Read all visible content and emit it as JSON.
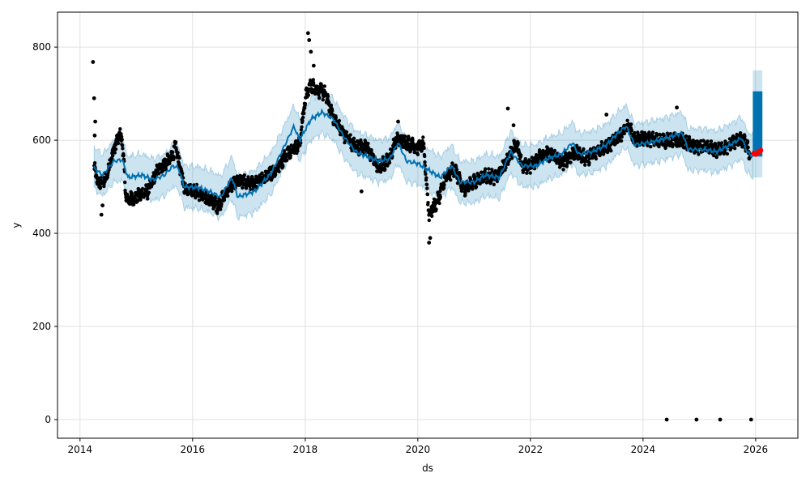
{
  "chart_data": {
    "type": "scatter",
    "xlabel": "ds",
    "ylabel": "y",
    "xlim": [
      2013.6,
      2026.75
    ],
    "ylim": [
      -40,
      875
    ],
    "grid": true,
    "x_ticks": [
      2014,
      2016,
      2018,
      2020,
      2022,
      2024,
      2026
    ],
    "x_tick_labels": [
      "2014",
      "2016",
      "2018",
      "2020",
      "2022",
      "2024",
      "2026"
    ],
    "y_ticks": [
      0,
      200,
      400,
      600,
      800
    ],
    "y_tick_labels": [
      "0",
      "200",
      "400",
      "600",
      "800"
    ],
    "colors": {
      "observed": "#000000",
      "forecast": "#0072B2",
      "interval": "#0072B2",
      "highlight": "#ff0000"
    },
    "observed_keypoints": [
      [
        2014.25,
        540
      ],
      [
        2014.33,
        505
      ],
      [
        2014.45,
        515
      ],
      [
        2014.6,
        580
      ],
      [
        2014.7,
        612
      ],
      [
        2014.75,
        600
      ],
      [
        2014.82,
        470
      ],
      [
        2015.0,
        478
      ],
      [
        2015.2,
        490
      ],
      [
        2015.4,
        540
      ],
      [
        2015.6,
        558
      ],
      [
        2015.7,
        585
      ],
      [
        2015.85,
        500
      ],
      [
        2016.0,
        495
      ],
      [
        2016.2,
        478
      ],
      [
        2016.35,
        470
      ],
      [
        2016.45,
        458
      ],
      [
        2016.6,
        490
      ],
      [
        2016.8,
        515
      ],
      [
        2017.0,
        505
      ],
      [
        2017.3,
        520
      ],
      [
        2017.5,
        540
      ],
      [
        2017.7,
        575
      ],
      [
        2017.9,
        590
      ],
      [
        2018.0,
        690
      ],
      [
        2018.1,
        720
      ],
      [
        2018.2,
        710
      ],
      [
        2018.35,
        700
      ],
      [
        2018.5,
        650
      ],
      [
        2018.7,
        610
      ],
      [
        2018.9,
        585
      ],
      [
        2019.1,
        585
      ],
      [
        2019.3,
        540
      ],
      [
        2019.5,
        560
      ],
      [
        2019.6,
        600
      ],
      [
        2019.7,
        600
      ],
      [
        2019.9,
        590
      ],
      [
        2020.0,
        585
      ],
      [
        2020.1,
        590
      ],
      [
        2020.2,
        440
      ],
      [
        2020.35,
        470
      ],
      [
        2020.5,
        520
      ],
      [
        2020.65,
        540
      ],
      [
        2020.8,
        495
      ],
      [
        2021.0,
        510
      ],
      [
        2021.2,
        525
      ],
      [
        2021.4,
        520
      ],
      [
        2021.6,
        560
      ],
      [
        2021.75,
        595
      ],
      [
        2021.85,
        545
      ],
      [
        2022.0,
        545
      ],
      [
        2022.2,
        570
      ],
      [
        2022.4,
        570
      ],
      [
        2022.55,
        550
      ],
      [
        2022.8,
        575
      ],
      [
        2023.0,
        560
      ],
      [
        2023.2,
        580
      ],
      [
        2023.4,
        590
      ],
      [
        2023.6,
        612
      ],
      [
        2023.75,
        630
      ],
      [
        2023.85,
        600
      ],
      [
        2024.0,
        605
      ],
      [
        2024.2,
        600
      ],
      [
        2024.4,
        598
      ],
      [
        2024.55,
        600
      ],
      [
        2024.7,
        600
      ],
      [
        2024.9,
        585
      ],
      [
        2025.1,
        585
      ],
      [
        2025.3,
        578
      ],
      [
        2025.5,
        585
      ],
      [
        2025.65,
        600
      ],
      [
        2025.8,
        598
      ],
      [
        2025.9,
        570
      ]
    ],
    "observed_outliers": [
      [
        2014.23,
        768
      ],
      [
        2014.25,
        690
      ],
      [
        2014.27,
        640
      ],
      [
        2014.26,
        610
      ],
      [
        2014.38,
        440
      ],
      [
        2014.4,
        460
      ],
      [
        2018.05,
        830
      ],
      [
        2018.07,
        815
      ],
      [
        2018.1,
        790
      ],
      [
        2018.15,
        760
      ],
      [
        2019.0,
        490
      ],
      [
        2019.65,
        640
      ],
      [
        2020.2,
        380
      ],
      [
        2020.22,
        390
      ],
      [
        2021.6,
        668
      ],
      [
        2021.7,
        632
      ],
      [
        2023.35,
        655
      ],
      [
        2024.6,
        670
      ],
      [
        2024.42,
        0
      ],
      [
        2024.95,
        0
      ],
      [
        2025.37,
        0
      ],
      [
        2025.92,
        0
      ]
    ],
    "forecast_keypoints": [
      [
        2014.25,
        540
      ],
      [
        2014.4,
        525
      ],
      [
        2014.6,
        555
      ],
      [
        2014.75,
        558
      ],
      [
        2014.85,
        520
      ],
      [
        2015.1,
        525
      ],
      [
        2015.3,
        515
      ],
      [
        2015.5,
        525
      ],
      [
        2015.65,
        545
      ],
      [
        2015.75,
        540
      ],
      [
        2015.85,
        500
      ],
      [
        2016.1,
        498
      ],
      [
        2016.3,
        490
      ],
      [
        2016.5,
        478
      ],
      [
        2016.7,
        520
      ],
      [
        2016.8,
        478
      ],
      [
        2017.1,
        490
      ],
      [
        2017.4,
        530
      ],
      [
        2017.6,
        580
      ],
      [
        2017.8,
        630
      ],
      [
        2017.9,
        600
      ],
      [
        2018.1,
        645
      ],
      [
        2018.3,
        660
      ],
      [
        2018.5,
        645
      ],
      [
        2018.7,
        605
      ],
      [
        2018.9,
        575
      ],
      [
        2019.1,
        565
      ],
      [
        2019.3,
        555
      ],
      [
        2019.5,
        560
      ],
      [
        2019.65,
        595
      ],
      [
        2019.8,
        555
      ],
      [
        2020.0,
        550
      ],
      [
        2020.2,
        535
      ],
      [
        2020.4,
        520
      ],
      [
        2020.6,
        545
      ],
      [
        2020.75,
        510
      ],
      [
        2021.0,
        510
      ],
      [
        2021.2,
        525
      ],
      [
        2021.45,
        520
      ],
      [
        2021.65,
        575
      ],
      [
        2021.85,
        545
      ],
      [
        2022.1,
        545
      ],
      [
        2022.3,
        560
      ],
      [
        2022.55,
        570
      ],
      [
        2022.75,
        595
      ],
      [
        2022.85,
        570
      ],
      [
        2023.1,
        575
      ],
      [
        2023.35,
        590
      ],
      [
        2023.55,
        615
      ],
      [
        2023.7,
        630
      ],
      [
        2023.85,
        590
      ],
      [
        2024.1,
        595
      ],
      [
        2024.3,
        600
      ],
      [
        2024.55,
        610
      ],
      [
        2024.7,
        615
      ],
      [
        2024.8,
        580
      ],
      [
        2025.1,
        580
      ],
      [
        2025.3,
        575
      ],
      [
        2025.55,
        590
      ],
      [
        2025.75,
        605
      ],
      [
        2025.85,
        575
      ],
      [
        2025.95,
        565
      ]
    ],
    "interval_halfwidth": 45,
    "forecast_block": {
      "x_start": 2025.95,
      "x_end": 2026.12,
      "y_low": 565,
      "y_high": 705
    },
    "forecast_block_interval": {
      "y_low": 520,
      "y_high": 750
    },
    "highlight_points": [
      [
        2025.97,
        572
      ],
      [
        2026.0,
        570
      ],
      [
        2026.03,
        573
      ],
      [
        2026.06,
        575
      ],
      [
        2026.09,
        578
      ]
    ]
  }
}
